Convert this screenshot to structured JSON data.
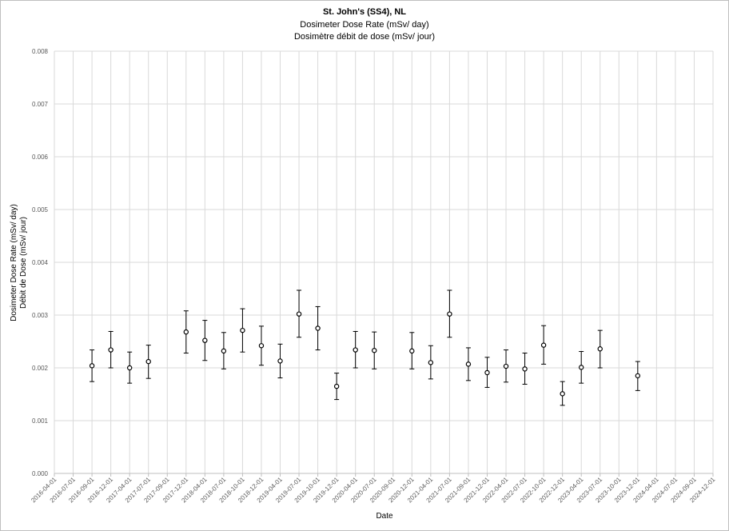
{
  "chart_data": {
    "type": "scatter",
    "title": "St. John's (SS4), NL",
    "subtitle": [
      "Dosimeter Dose Rate (mSv/ day)",
      "Dosimètre débit de dose (mSv/ jour)"
    ],
    "xlabel": "Date",
    "ylabel": [
      "Dosimeter Dose Rate (mSv/ day)",
      "Débit de Dose (mSv/ jour)"
    ],
    "ylim": [
      0,
      0.008
    ],
    "yticks": [
      "0.000",
      "0.001",
      "0.002",
      "0.003",
      "0.004",
      "0.005",
      "0.006",
      "0.007",
      "0.008"
    ],
    "xticks": [
      "2016-04-01",
      "2016-07-01",
      "2016-09-01",
      "2016-12-01",
      "2017-04-01",
      "2017-07-01",
      "2017-09-01",
      "2017-12-01",
      "2018-04-01",
      "2018-07-01",
      "2018-10-01",
      "2018-12-01",
      "2019-04-01",
      "2019-07-01",
      "2019-10-01",
      "2019-12-01",
      "2020-04-01",
      "2020-07-01",
      "2020-09-01",
      "2020-12-01",
      "2021-04-01",
      "2021-07-01",
      "2021-09-01",
      "2021-12-01",
      "2022-04-01",
      "2022-07-01",
      "2022-10-01",
      "2022-12-01",
      "2023-04-01",
      "2023-07-01",
      "2023-10-01",
      "2023-12-01",
      "2024-04-01",
      "2024-07-01",
      "2024-09-01",
      "2024-12-01"
    ],
    "grid": true,
    "error_bars": true,
    "points": [
      {
        "x": "2016-09-01",
        "y": 0.00204,
        "lo": 0.00174,
        "hi": 0.00234
      },
      {
        "x": "2016-12-01",
        "y": 0.00234,
        "lo": 0.002,
        "hi": 0.00269
      },
      {
        "x": "2017-04-01",
        "y": 0.002,
        "lo": 0.00171,
        "hi": 0.0023
      },
      {
        "x": "2017-07-01",
        "y": 0.00212,
        "lo": 0.0018,
        "hi": 0.00243
      },
      {
        "x": "2017-12-01",
        "y": 0.00268,
        "lo": 0.00228,
        "hi": 0.00308
      },
      {
        "x": "2018-04-01",
        "y": 0.00252,
        "lo": 0.00214,
        "hi": 0.0029
      },
      {
        "x": "2018-07-01",
        "y": 0.00232,
        "lo": 0.00198,
        "hi": 0.00267
      },
      {
        "x": "2018-10-01",
        "y": 0.00271,
        "lo": 0.0023,
        "hi": 0.00312
      },
      {
        "x": "2018-12-01",
        "y": 0.00242,
        "lo": 0.00205,
        "hi": 0.00279
      },
      {
        "x": "2019-04-01",
        "y": 0.00213,
        "lo": 0.00181,
        "hi": 0.00245
      },
      {
        "x": "2019-07-01",
        "y": 0.00302,
        "lo": 0.00258,
        "hi": 0.00347
      },
      {
        "x": "2019-10-01",
        "y": 0.00275,
        "lo": 0.00234,
        "hi": 0.00316
      },
      {
        "x": "2019-12-01",
        "y": 0.00165,
        "lo": 0.0014,
        "hi": 0.0019
      },
      {
        "x": "2020-04-01",
        "y": 0.00234,
        "lo": 0.002,
        "hi": 0.00269
      },
      {
        "x": "2020-07-01",
        "y": 0.00233,
        "lo": 0.00198,
        "hi": 0.00268
      },
      {
        "x": "2020-12-01",
        "y": 0.00232,
        "lo": 0.00198,
        "hi": 0.00267
      },
      {
        "x": "2021-04-01",
        "y": 0.0021,
        "lo": 0.00179,
        "hi": 0.00242
      },
      {
        "x": "2021-07-01",
        "y": 0.00302,
        "lo": 0.00258,
        "hi": 0.00347
      },
      {
        "x": "2021-09-01",
        "y": 0.00207,
        "lo": 0.00176,
        "hi": 0.00238
      },
      {
        "x": "2021-12-01",
        "y": 0.00191,
        "lo": 0.00163,
        "hi": 0.0022
      },
      {
        "x": "2022-04-01",
        "y": 0.00203,
        "lo": 0.00173,
        "hi": 0.00234
      },
      {
        "x": "2022-07-01",
        "y": 0.00198,
        "lo": 0.00169,
        "hi": 0.00228
      },
      {
        "x": "2022-10-01",
        "y": 0.00243,
        "lo": 0.00207,
        "hi": 0.0028
      },
      {
        "x": "2022-12-01",
        "y": 0.00151,
        "lo": 0.00129,
        "hi": 0.00174
      },
      {
        "x": "2023-04-01",
        "y": 0.00201,
        "lo": 0.00171,
        "hi": 0.00231
      },
      {
        "x": "2023-07-01",
        "y": 0.00236,
        "lo": 0.002,
        "hi": 0.00271
      },
      {
        "x": "2023-12-01",
        "y": 0.00185,
        "lo": 0.00157,
        "hi": 0.00212
      }
    ],
    "colors": {
      "grid": "#d9d9d9",
      "marker": "#000000",
      "axis": "#bfbfbf",
      "text": "#595959"
    }
  }
}
